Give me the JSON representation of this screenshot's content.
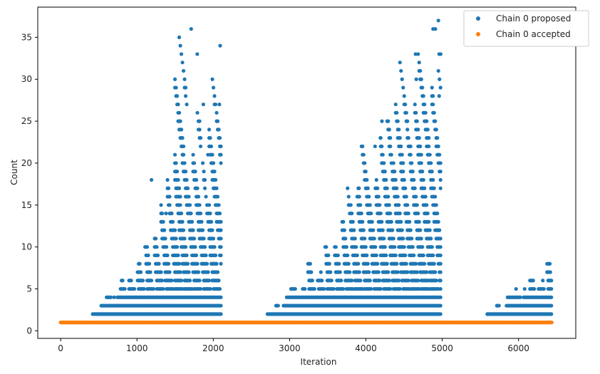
{
  "chart_data": {
    "type": "scatter",
    "xlabel": "Iteration",
    "ylabel": "Count",
    "xlim": [
      -300,
      6750
    ],
    "ylim": [
      -0.9,
      38.6
    ],
    "xticks": [
      0,
      1000,
      2000,
      3000,
      4000,
      5000,
      6000
    ],
    "yticks": [
      0,
      5,
      10,
      15,
      20,
      25,
      30,
      35
    ],
    "legend_position": "top-right",
    "series": [
      {
        "name": "Chain 0 proposed",
        "color": "#1f77b4",
        "description_regions": [
          {
            "x_range": [
              420,
              2110
            ],
            "max_values": [
              2,
              3,
              4,
              5,
              6,
              7,
              9,
              10,
              11,
              14,
              18,
              21,
              36,
              33,
              25,
              27,
              21,
              34,
              27
            ]
          },
          {
            "x_range": [
              2710,
              4980
            ],
            "max_values": [
              2,
              3,
              4,
              5,
              6,
              8,
              9,
              10,
              12,
              14,
              17,
              22,
              23,
              25,
              24,
              27,
              29,
              33,
              30,
              32,
              36,
              37,
              33
            ]
          },
          {
            "x_range": [
              5590,
              6440
            ],
            "max_values": [
              2,
              3,
              4,
              5,
              6,
              7,
              8
            ]
          }
        ],
        "highlights": [
          {
            "x": 1190,
            "y": 18
          },
          {
            "x": 1380,
            "y": 14
          },
          {
            "x": 1600,
            "y": 21
          },
          {
            "x": 1710,
            "y": 36
          },
          {
            "x": 1790,
            "y": 33
          },
          {
            "x": 1820,
            "y": 25
          },
          {
            "x": 1870,
            "y": 27
          },
          {
            "x": 1930,
            "y": 21
          },
          {
            "x": 2090,
            "y": 34
          },
          {
            "x": 2080,
            "y": 27
          },
          {
            "x": 3910,
            "y": 17
          },
          {
            "x": 4120,
            "y": 22
          },
          {
            "x": 4190,
            "y": 23
          },
          {
            "x": 4210,
            "y": 25
          },
          {
            "x": 4650,
            "y": 33
          },
          {
            "x": 4660,
            "y": 30
          },
          {
            "x": 4880,
            "y": 36
          },
          {
            "x": 4910,
            "y": 36
          },
          {
            "x": 4950,
            "y": 37
          },
          {
            "x": 4960,
            "y": 33
          },
          {
            "x": 4980,
            "y": 33
          },
          {
            "x": 4960,
            "y": 28
          },
          {
            "x": 6410,
            "y": 8
          }
        ]
      },
      {
        "name": "Chain 0 accepted",
        "color": "#ff7f0e",
        "x_range": [
          0,
          6440
        ],
        "value": 1
      }
    ]
  }
}
